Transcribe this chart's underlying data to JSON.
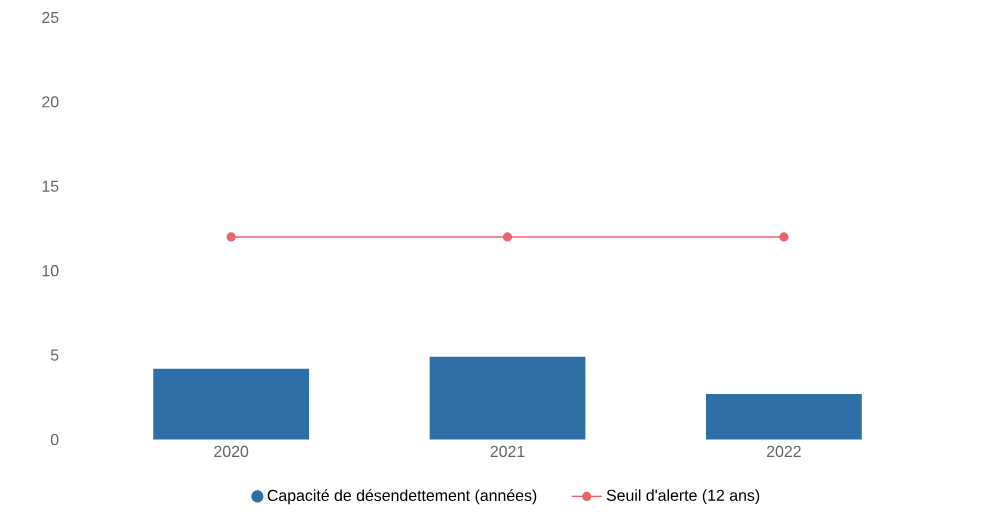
{
  "chart_data": {
    "type": "bar",
    "categories": [
      "2020",
      "2021",
      "2022"
    ],
    "series": [
      {
        "name": "Capacité de désendettement (années)",
        "color": "#2e6fa7",
        "values": [
          4.2,
          4.9,
          2.7
        ]
      },
      {
        "name": "Seuil d'alerte (12 ans)",
        "type": "line",
        "color": "#e8636b",
        "values": [
          12,
          12,
          12
        ],
        "marker": "circle"
      }
    ],
    "ylim": [
      0,
      25
    ],
    "yticks": [
      0,
      5,
      10,
      15,
      20,
      25
    ],
    "grid": false,
    "legend": "bottom"
  }
}
